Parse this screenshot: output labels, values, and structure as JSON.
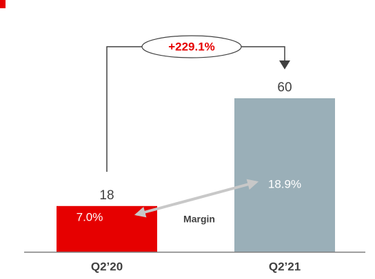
{
  "chart_data": {
    "type": "bar",
    "categories": [
      "Q2’20",
      "Q2’21"
    ],
    "series": [
      {
        "values": [
          18,
          60
        ],
        "colors": [
          "#e60000",
          "#9aafb8"
        ]
      }
    ],
    "margin_label": "Margin",
    "margin_labels": [
      "7.0%",
      "18.9%"
    ],
    "growth_label": "+229.1%"
  }
}
